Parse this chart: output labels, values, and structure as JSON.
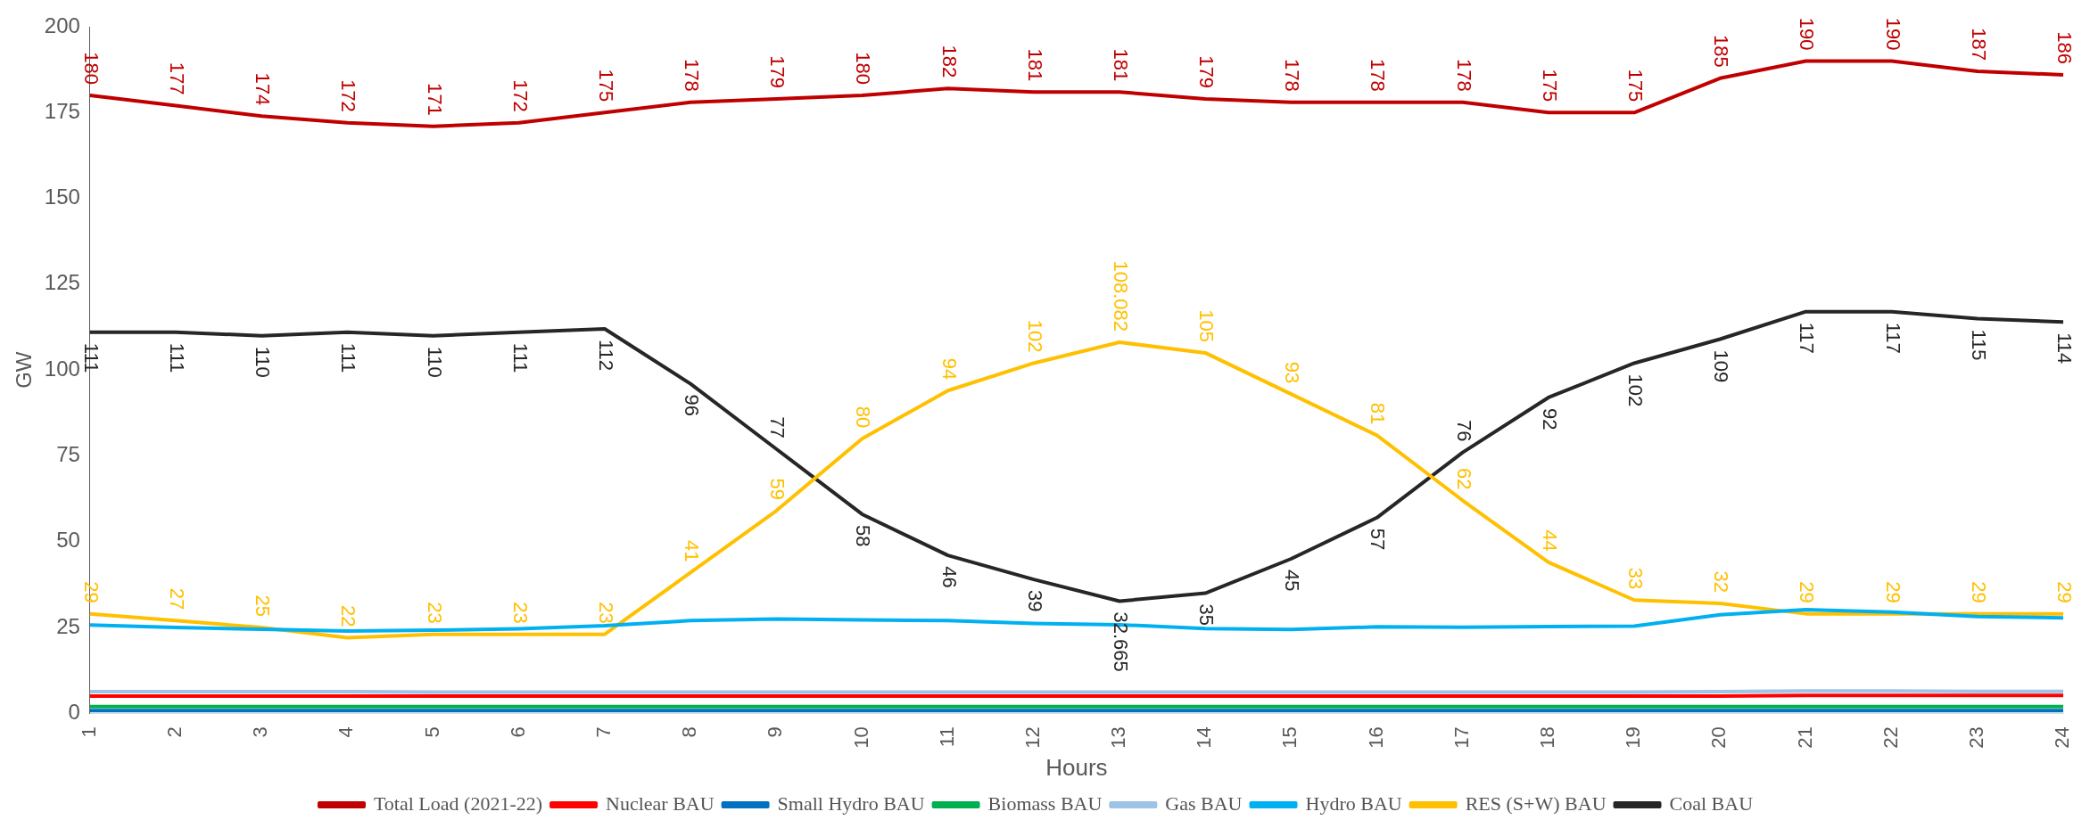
{
  "chart_data": {
    "type": "line",
    "xlabel": "Hours",
    "ylabel": "GW",
    "categories": [
      "1",
      "2",
      "3",
      "4",
      "5",
      "6",
      "7",
      "8",
      "9",
      "10",
      "11",
      "12",
      "13",
      "14",
      "15",
      "16",
      "17",
      "18",
      "19",
      "20",
      "21",
      "22",
      "23",
      "24"
    ],
    "ylim": [
      0,
      200
    ],
    "yticks": [
      0,
      25,
      50,
      75,
      100,
      125,
      150,
      175,
      200
    ],
    "grid": false,
    "legend": "bottom",
    "marker": "none",
    "line_style": "solid",
    "series": [
      {
        "name": "Total Load (2021-22)",
        "color": "#c00000",
        "values": [
          180,
          177,
          174,
          172,
          171,
          172,
          175,
          178,
          179,
          180,
          182,
          181,
          181,
          179,
          178,
          178,
          178,
          175,
          175,
          185,
          190,
          190,
          187,
          186
        ],
        "value_labels": [
          "180",
          "177",
          "174",
          "172",
          "171",
          "172",
          "175",
          "178",
          "179",
          "180",
          "182",
          "181",
          "181",
          "179",
          "178",
          "178",
          "178",
          "175",
          "175",
          "185",
          "190",
          "190",
          "187",
          "186"
        ]
      },
      {
        "name": "Nuclear BAU",
        "color": "#ff0000",
        "values": [
          5,
          5,
          5,
          5,
          5,
          5,
          5,
          5,
          5,
          5,
          5,
          5,
          5,
          5,
          5,
          5,
          5,
          5,
          5,
          5,
          5.2,
          5.2,
          5.2,
          5.2
        ]
      },
      {
        "name": "Small Hydro BAU",
        "color": "#0070c0",
        "values": [
          0.8,
          0.8,
          0.8,
          0.8,
          0.8,
          0.8,
          0.8,
          0.8,
          0.8,
          0.8,
          0.8,
          0.8,
          0.8,
          0.8,
          0.8,
          0.8,
          0.8,
          0.8,
          0.8,
          0.8,
          0.8,
          0.8,
          0.8,
          0.8
        ]
      },
      {
        "name": "Biomass BAU",
        "color": "#00b050",
        "values": [
          2,
          2,
          2,
          2,
          2,
          2,
          2,
          2,
          2,
          2,
          2,
          2,
          2,
          2,
          2,
          2,
          2,
          2,
          2,
          2,
          2,
          2,
          2,
          2
        ]
      },
      {
        "name": "Gas BAU",
        "color": "#9dc3e6",
        "values": [
          6.3,
          6.3,
          6.3,
          6.3,
          6.2,
          6.2,
          6.2,
          6.2,
          6.2,
          6.2,
          6.2,
          6.2,
          6.2,
          6.2,
          6.2,
          6.2,
          6.2,
          6.2,
          6.2,
          6.3,
          6.5,
          6.5,
          6.4,
          6.4
        ]
      },
      {
        "name": "Hydro BAU",
        "color": "#00b0f0",
        "values": [
          25.7,
          25,
          24.5,
          24,
          24.2,
          24.6,
          25.5,
          27,
          27.5,
          27.2,
          27,
          26.2,
          25.8,
          24.7,
          24.4,
          25.2,
          25.1,
          25.3,
          25.4,
          28.7,
          30.2,
          29.5,
          28.2,
          27.8
        ]
      },
      {
        "name": "RES (S+W) BAU",
        "color": "#ffc000",
        "values": [
          29,
          27,
          25,
          22,
          23,
          23,
          23,
          41,
          59,
          80,
          94,
          102,
          108.082,
          105,
          93,
          81,
          62,
          44,
          33,
          32,
          29,
          29,
          29,
          29
        ],
        "value_labels": [
          "29",
          "27",
          "25",
          "22",
          "23",
          "23",
          "23",
          "41",
          "59",
          "80",
          "94",
          "102",
          "108.082",
          "105",
          "93",
          "81",
          "62",
          "44",
          "33",
          "32",
          "29",
          "29",
          "29",
          "29"
        ]
      },
      {
        "name": "Coal BAU",
        "color": "#262626",
        "values": [
          111,
          111,
          110,
          111,
          110,
          111,
          112,
          96,
          77,
          58,
          46,
          39,
          32.665,
          35,
          45,
          57,
          76,
          92,
          102,
          109,
          117,
          117,
          115,
          114
        ],
        "value_labels": [
          "111",
          "111",
          "110",
          "111",
          "110",
          "111",
          "112",
          "96",
          "77",
          "58",
          "46",
          "39",
          "32.665",
          "35",
          "45",
          "57",
          "76",
          "92",
          "102",
          "109",
          "117",
          "117",
          "115",
          "114"
        ]
      }
    ]
  }
}
